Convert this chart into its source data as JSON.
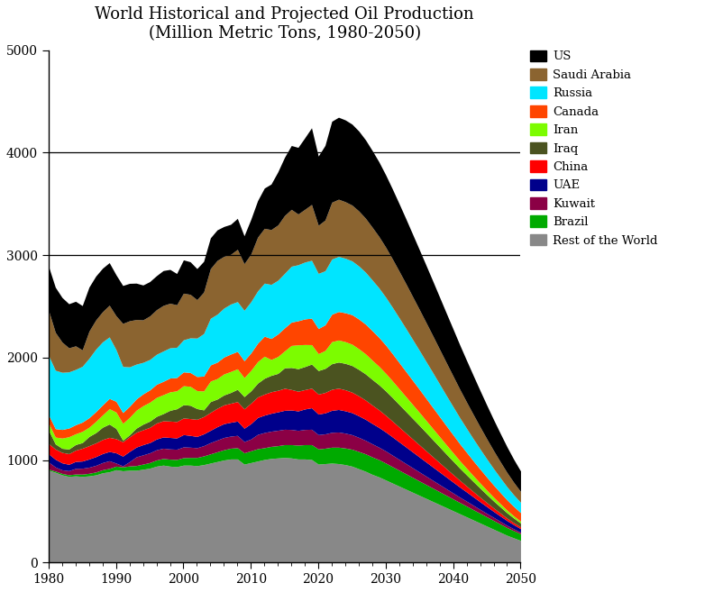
{
  "title": "World Historical and Projected Oil Production\n(Million Metric Tons, 1980-2050)",
  "years": [
    1980,
    1981,
    1982,
    1983,
    1984,
    1985,
    1986,
    1987,
    1988,
    1989,
    1990,
    1991,
    1992,
    1993,
    1994,
    1995,
    1996,
    1997,
    1998,
    1999,
    2000,
    2001,
    2002,
    2003,
    2004,
    2005,
    2006,
    2007,
    2008,
    2009,
    2010,
    2011,
    2012,
    2013,
    2014,
    2015,
    2016,
    2017,
    2018,
    2019,
    2020,
    2021,
    2022,
    2023,
    2024,
    2025,
    2026,
    2027,
    2028,
    2029,
    2030,
    2031,
    2032,
    2033,
    2034,
    2035,
    2036,
    2037,
    2038,
    2039,
    2040,
    2041,
    2042,
    2043,
    2044,
    2045,
    2046,
    2047,
    2048,
    2049,
    2050
  ],
  "series": {
    "Rest of the World": [
      900,
      880,
      855,
      840,
      845,
      840,
      845,
      855,
      875,
      885,
      905,
      895,
      900,
      900,
      910,
      920,
      940,
      950,
      940,
      935,
      950,
      950,
      945,
      955,
      970,
      985,
      1000,
      1010,
      1010,
      960,
      975,
      990,
      1005,
      1015,
      1020,
      1025,
      1020,
      1010,
      1010,
      1005,
      960,
      965,
      970,
      965,
      955,
      940,
      915,
      890,
      860,
      835,
      805,
      775,
      745,
      715,
      685,
      655,
      625,
      595,
      565,
      535,
      505,
      475,
      445,
      415,
      385,
      355,
      325,
      295,
      265,
      240,
      215
    ],
    "Brazil": [
      10,
      12,
      14,
      16,
      18,
      22,
      25,
      28,
      30,
      33,
      35,
      38,
      42,
      46,
      50,
      55,
      60,
      65,
      68,
      70,
      73,
      75,
      80,
      85,
      90,
      95,
      100,
      105,
      110,
      110,
      115,
      120,
      115,
      118,
      120,
      125,
      130,
      135,
      140,
      145,
      148,
      150,
      155,
      160,
      162,
      165,
      168,
      170,
      170,
      168,
      165,
      160,
      155,
      150,
      145,
      140,
      135,
      130,
      125,
      120,
      115,
      110,
      105,
      100,
      95,
      90,
      85,
      80,
      75,
      70,
      65
    ],
    "Kuwait": [
      70,
      40,
      35,
      40,
      55,
      58,
      60,
      65,
      70,
      75,
      30,
      10,
      42,
      85,
      90,
      95,
      100,
      100,
      100,
      100,
      105,
      100,
      95,
      100,
      110,
      115,
      120,
      118,
      120,
      110,
      115,
      140,
      148,
      148,
      150,
      150,
      148,
      144,
      148,
      150,
      140,
      140,
      145,
      148,
      145,
      142,
      138,
      132,
      128,
      122,
      118,
      112,
      106,
      100,
      94,
      88,
      82,
      76,
      70,
      64,
      58,
      52,
      48,
      43,
      38,
      34,
      30,
      26,
      22,
      18,
      15
    ],
    "UAE": [
      80,
      75,
      68,
      62,
      68,
      70,
      80,
      85,
      88,
      90,
      100,
      95,
      100,
      95,
      100,
      100,
      105,
      110,
      112,
      110,
      120,
      115,
      110,
      115,
      120,
      130,
      135,
      135,
      140,
      130,
      150,
      165,
      170,
      175,
      180,
      185,
      190,
      190,
      200,
      210,
      200,
      205,
      215,
      220,
      218,
      215,
      210,
      205,
      198,
      192,
      185,
      178,
      170,
      162,
      154,
      146,
      138,
      130,
      122,
      114,
      106,
      98,
      90,
      82,
      74,
      66,
      58,
      52,
      46,
      40,
      35
    ],
    "China": [
      100,
      100,
      102,
      104,
      110,
      125,
      130,
      134,
      137,
      138,
      138,
      140,
      142,
      145,
      145,
      149,
      156,
      158,
      160,
      160,
      162,
      164,
      167,
      169,
      175,
      180,
      183,
      186,
      190,
      189,
      200,
      200,
      205,
      210,
      210,
      215,
      200,
      192,
      189,
      191,
      195,
      199,
      205,
      208,
      205,
      200,
      195,
      188,
      180,
      172,
      163,
      154,
      145,
      136,
      127,
      118,
      109,
      100,
      91,
      82,
      74,
      66,
      58,
      51,
      45,
      39,
      34,
      29,
      24,
      20,
      17
    ],
    "Iraq": [
      130,
      50,
      40,
      45,
      55,
      55,
      90,
      100,
      120,
      130,
      100,
      15,
      20,
      40,
      55,
      60,
      65,
      70,
      105,
      125,
      130,
      130,
      105,
      65,
      105,
      90,
      97,
      105,
      120,
      120,
      120,
      135,
      155,
      160,
      165,
      200,
      215,
      220,
      225,
      235,
      230,
      235,
      250,
      255,
      258,
      260,
      258,
      255,
      250,
      245,
      238,
      230,
      220,
      210,
      200,
      190,
      178,
      166,
      154,
      142,
      130,
      118,
      108,
      98,
      88,
      78,
      68,
      60,
      52,
      45,
      38
    ],
    "Iran": [
      70,
      67,
      100,
      120,
      105,
      110,
      90,
      110,
      120,
      150,
      160,
      165,
      170,
      175,
      180,
      185,
      185,
      185,
      180,
      175,
      185,
      185,
      175,
      185,
      200,
      200,
      205,
      205,
      200,
      185,
      200,
      210,
      215,
      155,
      165,
      165,
      215,
      233,
      215,
      190,
      165,
      175,
      215,
      215,
      212,
      208,
      202,
      196,
      188,
      180,
      172,
      163,
      154,
      145,
      136,
      127,
      118,
      109,
      100,
      91,
      82,
      73,
      65,
      57,
      50,
      43,
      37,
      31,
      26,
      21,
      18
    ],
    "Canada": [
      80,
      82,
      84,
      85,
      88,
      90,
      93,
      95,
      98,
      100,
      105,
      105,
      108,
      110,
      115,
      120,
      128,
      130,
      135,
      130,
      135,
      135,
      138,
      145,
      158,
      160,
      165,
      170,
      170,
      165,
      170,
      180,
      195,
      205,
      220,
      225,
      228,
      235,
      250,
      258,
      245,
      250,
      268,
      278,
      282,
      288,
      290,
      290,
      288,
      282,
      275,
      265,
      255,
      245,
      235,
      225,
      215,
      205,
      195,
      185,
      175,
      165,
      155,
      145,
      136,
      127,
      118,
      109,
      100,
      92,
      84
    ],
    "Russia": [
      580,
      570,
      558,
      548,
      540,
      545,
      580,
      610,
      615,
      600,
      505,
      450,
      385,
      340,
      308,
      297,
      293,
      296,
      295,
      295,
      313,
      338,
      375,
      415,
      455,
      468,
      478,
      488,
      486,
      492,
      500,
      510,
      518,
      528,
      524,
      532,
      545,
      547,
      555,
      565,
      538,
      528,
      538,
      538,
      532,
      525,
      518,
      507,
      495,
      483,
      468,
      453,
      437,
      420,
      400,
      380,
      360,
      340,
      318,
      296,
      275,
      254,
      234,
      215,
      196,
      178,
      161,
      144,
      128,
      113,
      100
    ],
    "Saudi Arabia": [
      440,
      370,
      295,
      235,
      230,
      160,
      265,
      285,
      295,
      310,
      330,
      420,
      450,
      435,
      415,
      425,
      435,
      445,
      435,
      415,
      455,
      425,
      375,
      405,
      485,
      525,
      505,
      485,
      510,
      455,
      465,
      525,
      535,
      535,
      540,
      565,
      555,
      495,
      515,
      545,
      470,
      495,
      555,
      558,
      552,
      545,
      537,
      527,
      515,
      502,
      488,
      472,
      455,
      437,
      418,
      399,
      380,
      360,
      340,
      320,
      299,
      278,
      257,
      237,
      216,
      196,
      176,
      157,
      139,
      122,
      106
    ],
    "US": [
      430,
      440,
      435,
      430,
      435,
      432,
      430,
      428,
      424,
      415,
      400,
      370,
      365,
      355,
      340,
      335,
      332,
      340,
      330,
      305,
      325,
      318,
      303,
      300,
      300,
      298,
      291,
      293,
      302,
      272,
      339,
      356,
      393,
      444,
      518,
      568,
      623,
      650,
      698,
      748,
      675,
      728,
      790,
      800,
      798,
      790,
      780,
      765,
      748,
      728,
      705,
      682,
      658,
      633,
      608,
      583,
      558,
      533,
      508,
      483,
      458,
      432,
      406,
      380,
      354,
      328,
      302,
      276,
      250,
      224,
      200
    ]
  },
  "colors": {
    "US": "#000000",
    "Saudi Arabia": "#8B6430",
    "Russia": "#00E5FF",
    "Canada": "#FF4500",
    "Iran": "#7CFC00",
    "Iraq": "#4B5320",
    "China": "#FF0000",
    "UAE": "#00008B",
    "Kuwait": "#8B0045",
    "Brazil": "#00AA00",
    "Rest of the World": "#888888"
  },
  "ylim": [
    0,
    5000
  ],
  "yticks": [
    0,
    1000,
    2000,
    3000,
    4000,
    5000
  ],
  "xticks": [
    1980,
    1990,
    2000,
    2010,
    2020,
    2030,
    2040,
    2050
  ],
  "hlines": [
    3000,
    4000
  ],
  "background_color": "#ffffff",
  "title_fontsize": 13,
  "fig_width": 8.02,
  "fig_height": 6.57,
  "dpi": 100
}
